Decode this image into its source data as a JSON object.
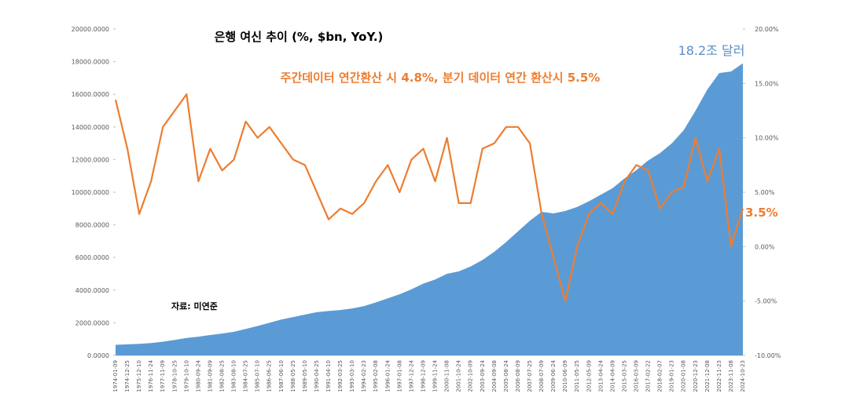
{
  "chart_data": {
    "type": "area-line",
    "title": "은행 여신 추이 (%, $bn, YoY.)",
    "subtitle": "주간데이터 연간환산 시 4.8%, 분기 데이터 연간 환산시 5.5%",
    "annotations": [
      "18.2조 달러",
      "3.5%",
      "자료: 미연준"
    ],
    "categories": [
      "1974-01-09",
      "1974-12-25",
      "1975-12-10",
      "1976-11-24",
      "1977-11-09",
      "1978-10-25",
      "1979-10-10",
      "1980-09-24",
      "1981-09-09",
      "1982-08-25",
      "1983-08-10",
      "1984-07-25",
      "1985-07-10",
      "1986-06-25",
      "1987-06-10",
      "1988-05-25",
      "1989-05-10",
      "1990-04-25",
      "1991-04-10",
      "1992-03-25",
      "1993-03-10",
      "1994-02-23",
      "1995-02-08",
      "1996-01-24",
      "1997-01-08",
      "1997-12-24",
      "1998-12-09",
      "1999-11-24",
      "2000-11-08",
      "2001-10-24",
      "2002-10-09",
      "2003-09-24",
      "2004-09-08",
      "2005-08-24",
      "2006-08-09",
      "2007-07-25",
      "2008-07-09",
      "2009-06-24",
      "2010-06-09",
      "2011-05-25",
      "2012-05-09",
      "2013-04-24",
      "2014-04-09",
      "2015-03-25",
      "2016-03-09",
      "2017-02-22",
      "2018-02-07",
      "2019-01-23",
      "2020-01-08",
      "2020-12-23",
      "2021-12-08",
      "2022-11-23",
      "2023-11-08",
      "2024-10-23"
    ],
    "series": [
      {
        "color": "#5b9bd5",
        "kind": "area",
        "axis": "y",
        "values": [
          650,
          680,
          710,
          760,
          840,
          950,
          1070,
          1150,
          1250,
          1340,
          1450,
          1620,
          1800,
          2000,
          2200,
          2350,
          2500,
          2650,
          2720,
          2780,
          2880,
          3020,
          3250,
          3500,
          3750,
          4050,
          4400,
          4650,
          5000,
          5150,
          5450,
          5850,
          6350,
          6950,
          7600,
          8250,
          8800,
          8700,
          8850,
          9100,
          9450,
          9850,
          10250,
          10850,
          11350,
          11950,
          12400,
          13000,
          13800,
          15000,
          16300,
          17300,
          17400,
          17900
        ]
      },
      {
        "color": "#ed7d31",
        "kind": "line",
        "axis": "y2",
        "values": [
          13.5,
          9,
          3,
          6,
          11,
          12.5,
          14,
          6,
          9,
          7,
          8,
          11.5,
          10,
          11,
          9.5,
          8,
          7.5,
          5,
          2.5,
          3.5,
          3,
          4,
          6,
          7.5,
          5,
          8,
          9,
          6,
          10,
          4,
          4,
          9,
          9.5,
          11,
          11,
          9.5,
          3,
          -1,
          -5,
          0,
          3,
          4,
          3,
          6,
          7.5,
          7,
          3.5,
          5,
          5.5,
          10,
          6,
          9,
          0,
          3.5
        ]
      }
    ],
    "ylim": [
      0,
      20000
    ],
    "yticks": [
      {
        "value": 0,
        "label": "0.0000"
      },
      {
        "value": 2000,
        "label": "2000.0000"
      },
      {
        "value": 4000,
        "label": "4000.0000"
      },
      {
        "value": 6000,
        "label": "6000.0000"
      },
      {
        "value": 8000,
        "label": "8000.0000"
      },
      {
        "value": 10000,
        "label": "10000.0000"
      },
      {
        "value": 12000,
        "label": "12000.0000"
      },
      {
        "value": 14000,
        "label": "14000.0000"
      },
      {
        "value": 16000,
        "label": "16000.0000"
      },
      {
        "value": 18000,
        "label": "18000.0000"
      },
      {
        "value": 20000,
        "label": "20000.0000"
      }
    ],
    "y2lim": [
      -10,
      20
    ],
    "y2ticks": [
      {
        "value": -10,
        "label": "-10.00%"
      },
      {
        "value": -5,
        "label": "-5.00%"
      },
      {
        "value": 0,
        "label": "0.00%"
      },
      {
        "value": 5,
        "label": "5.00%"
      },
      {
        "value": 10,
        "label": "10.00%"
      },
      {
        "value": 15,
        "label": "15.00%"
      },
      {
        "value": 20,
        "label": "20.00%"
      }
    ],
    "grid": false
  }
}
